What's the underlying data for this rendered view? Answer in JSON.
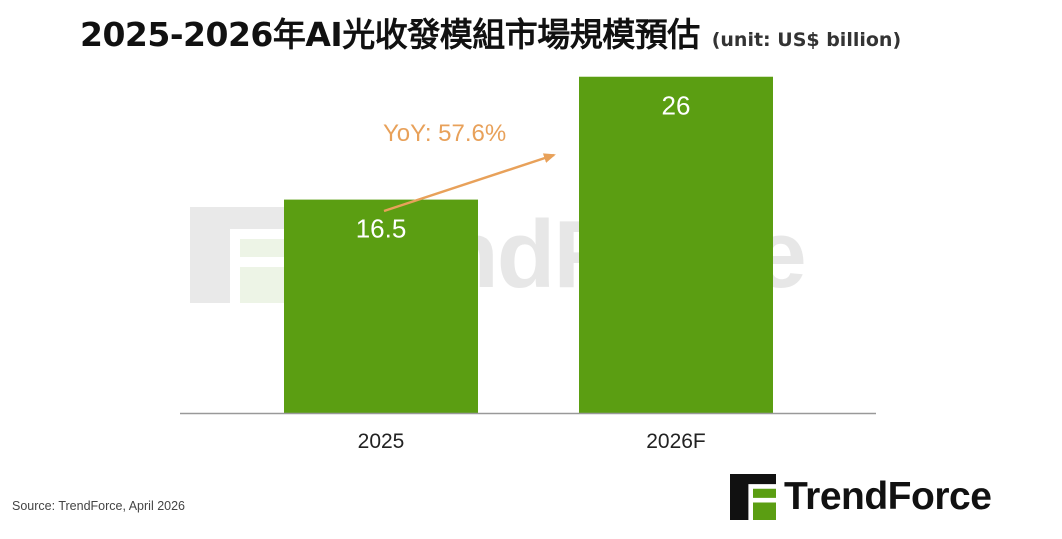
{
  "header": {
    "title": "2025-2026年AI光收發模組市場規模預估",
    "unit": "(unit: US$ billion)"
  },
  "chart_data": {
    "type": "bar",
    "categories": [
      "2025",
      "2026F"
    ],
    "values": [
      16.5,
      26
    ],
    "ylim": [
      0,
      30
    ],
    "grid": false,
    "annotation": {
      "text": "YoY: 57.6%"
    },
    "colors": {
      "bar": "#5b9e12",
      "annotation": "#e8a15a",
      "axis": "#999999",
      "bar_label": "#ffffff"
    }
  },
  "footer": {
    "source": "Source: TrendForce, April 2026"
  },
  "brand": {
    "name": "TrendForce",
    "logo_icon": "trendforce-logo-icon",
    "logo_color": "#5b9e12"
  },
  "watermark": {
    "text": "TrendForce"
  }
}
